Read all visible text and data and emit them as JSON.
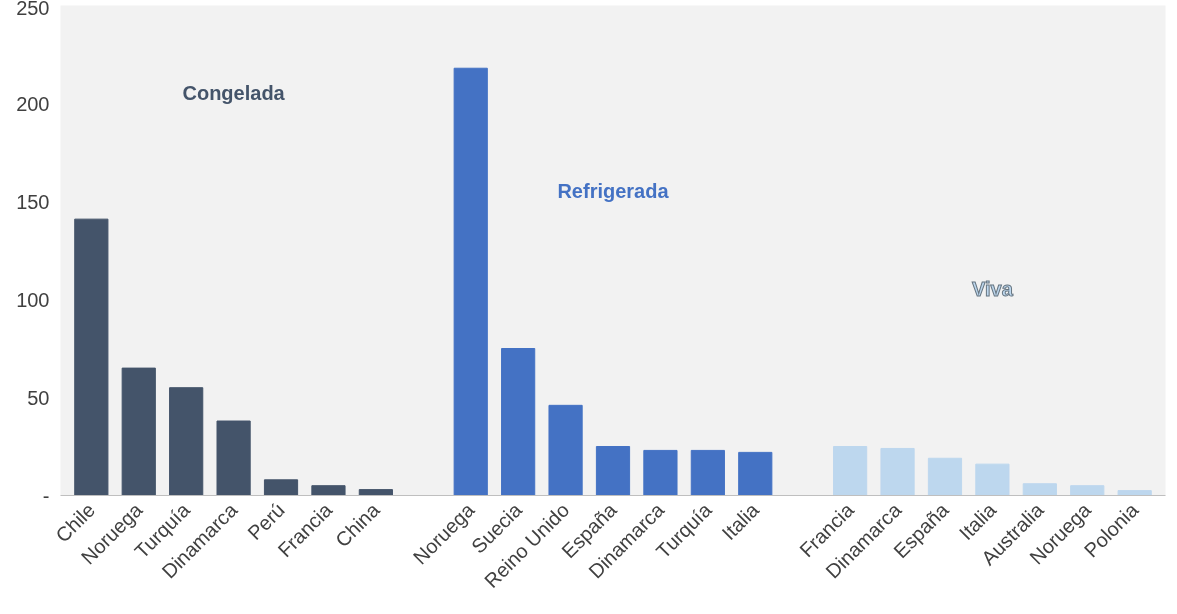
{
  "chart_data": {
    "type": "bar",
    "categories": [
      "Chile",
      "Noruega",
      "Turquía",
      "Dinamarca",
      "Perú",
      "Francia",
      "China",
      null,
      "Noruega",
      "Suecia",
      "Reino Unido",
      "España",
      "Dinamarca",
      "Turquía",
      "Italia",
      null,
      "Francia",
      "Dinamarca",
      "España",
      "Italia",
      "Australia",
      "Noruega",
      "Polonia"
    ],
    "series": [
      {
        "name": "Congelada",
        "color": "#44546a",
        "values": [
          141,
          65,
          55,
          38,
          8,
          5,
          3,
          null,
          null,
          null,
          null,
          null,
          null,
          null,
          null,
          null,
          null,
          null,
          null,
          null,
          null,
          null,
          null
        ]
      },
      {
        "name": "Refrigerada",
        "color": "#4472c4",
        "values": [
          null,
          null,
          null,
          null,
          null,
          null,
          null,
          null,
          218,
          75,
          46,
          25,
          23,
          23,
          22,
          null,
          null,
          null,
          null,
          null,
          null,
          null,
          null
        ]
      },
      {
        "name": "Viva",
        "color": "#bdd7ee",
        "values": [
          null,
          null,
          null,
          null,
          null,
          null,
          null,
          null,
          null,
          null,
          null,
          null,
          null,
          null,
          null,
          null,
          25,
          24,
          19,
          16,
          6,
          5,
          2.5
        ]
      }
    ],
    "ylim": [
      0,
      250
    ],
    "yticks": [
      {
        "value": 0,
        "label": "-"
      },
      50,
      100,
      150,
      200,
      250
    ],
    "grid": false
  }
}
